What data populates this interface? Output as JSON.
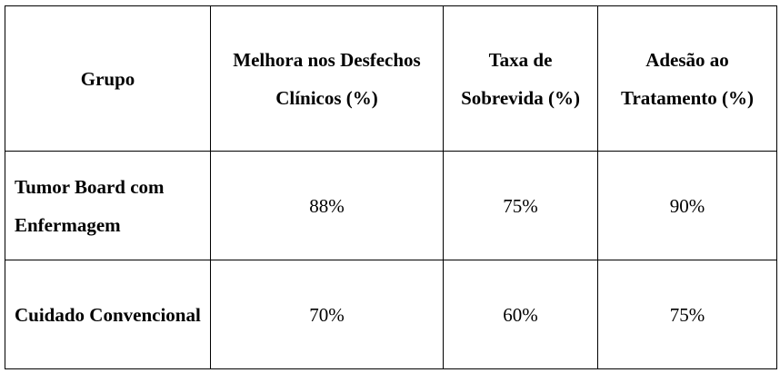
{
  "table": {
    "headers": [
      "Grupo",
      "Melhora nos Desfechos Clínicos (%)",
      "Taxa de Sobrevida (%)",
      "Adesão ao Tratamento (%)"
    ],
    "rows": [
      {
        "group": "Tumor Board com Enfermagem",
        "values": [
          "88%",
          "75%",
          "90%"
        ]
      },
      {
        "group": "Cuidado Convencional",
        "values": [
          "70%",
          "60%",
          "75%"
        ]
      }
    ]
  }
}
